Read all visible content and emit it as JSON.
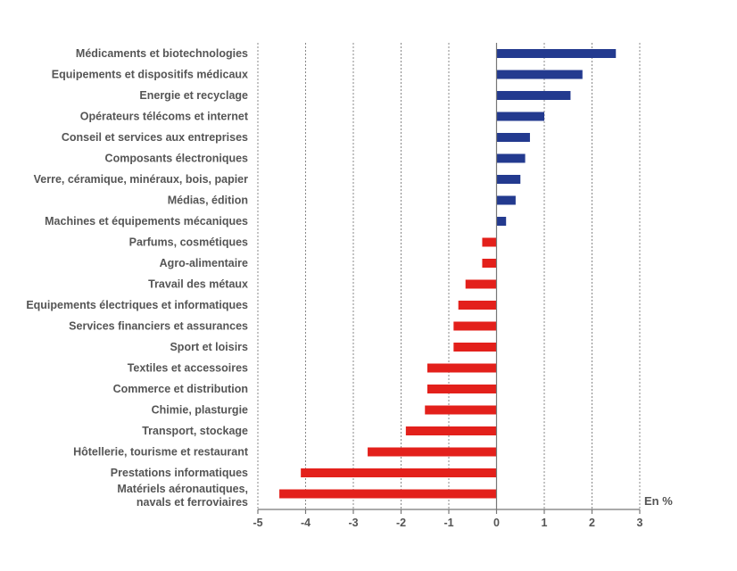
{
  "chart_data": {
    "type": "bar",
    "orientation": "horizontal",
    "categories": [
      [
        "Médicaments et biotechnologies"
      ],
      [
        "Equipements et dispositifs médicaux"
      ],
      [
        "Energie et recyclage"
      ],
      [
        "Opérateurs télécoms et internet"
      ],
      [
        "Conseil et services aux entreprises"
      ],
      [
        "Composants électroniques"
      ],
      [
        "Verre, céramique, minéraux, bois, papier"
      ],
      [
        "Médias, édition"
      ],
      [
        "Machines et équipements mécaniques"
      ],
      [
        "Parfums, cosmétiques"
      ],
      [
        "Agro-alimentaire"
      ],
      [
        "Travail des métaux"
      ],
      [
        "Equipements électriques et informatiques"
      ],
      [
        "Services financiers et assurances"
      ],
      [
        "Sport et loisirs"
      ],
      [
        "Textiles et accessoires"
      ],
      [
        "Commerce et distribution"
      ],
      [
        "Chimie, plasturgie"
      ],
      [
        "Transport, stockage"
      ],
      [
        "Hôtellerie, tourisme et restaurant"
      ],
      [
        "Prestations informatiques"
      ],
      [
        "Matériels aéronautiques,",
        "navals et ferroviaires"
      ]
    ],
    "values": [
      2.5,
      1.8,
      1.55,
      1.0,
      0.7,
      0.6,
      0.5,
      0.4,
      0.2,
      -0.3,
      -0.3,
      -0.65,
      -0.8,
      -0.9,
      -0.9,
      -1.45,
      -1.45,
      -1.5,
      -1.9,
      -2.7,
      -4.1,
      -4.55
    ],
    "xlim": [
      -5,
      3
    ],
    "xticks": [
      "-5",
      "-4",
      "-3",
      "-2",
      "-1",
      "0",
      "1",
      "2",
      "3"
    ],
    "unit_label": "En %",
    "grid": "vertical dashed",
    "colors": {
      "positive": "#233a8f",
      "negative": "#e3201b"
    }
  }
}
